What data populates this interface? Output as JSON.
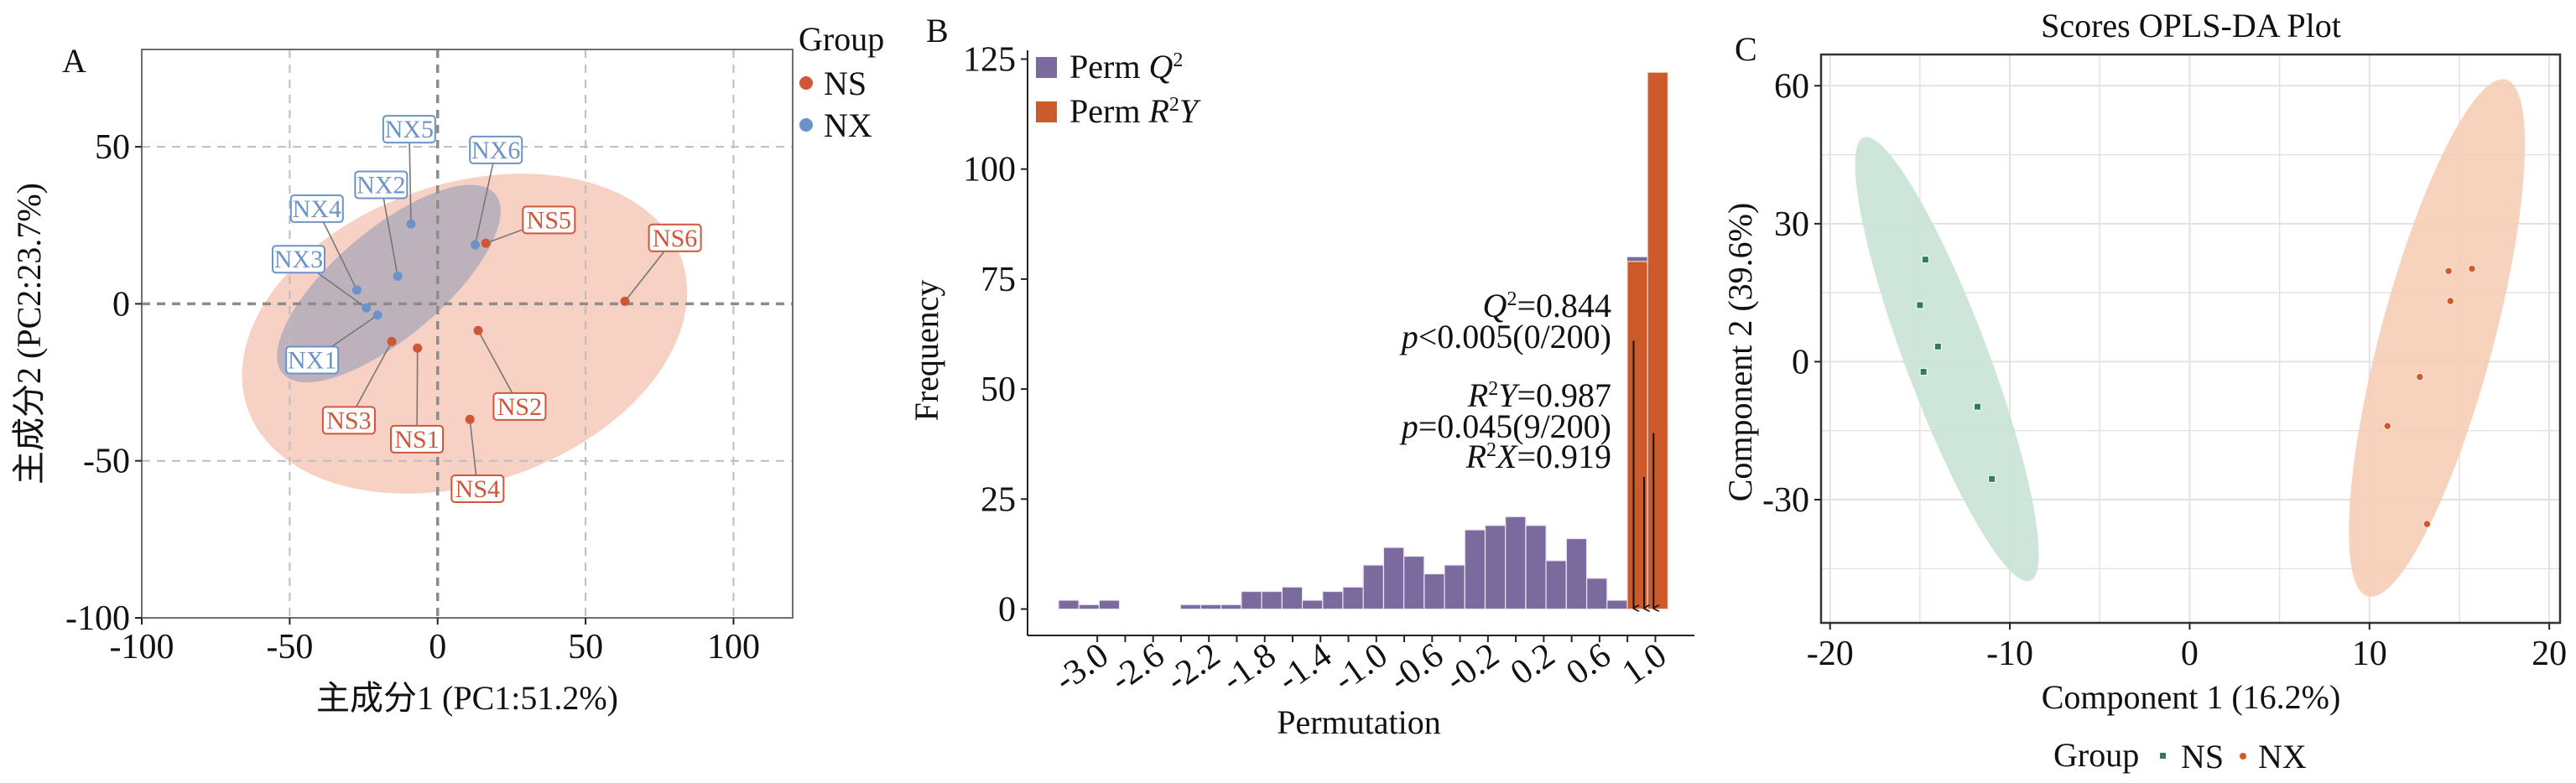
{
  "figure": {
    "panels": [
      "A",
      "B",
      "C"
    ]
  },
  "chart_data": [
    {
      "id": "A",
      "type": "scatter",
      "panel_letter": "A",
      "title": "",
      "xlabel": "主成分1 (PC1:51.2%)",
      "ylabel": "主成分2 (PC2:23.7%)",
      "xlim": [
        -100,
        120
      ],
      "ylim": [
        -100,
        81
      ],
      "xticks": [
        -100,
        -50,
        0,
        50,
        100
      ],
      "yticks": [
        -100,
        -50,
        0,
        50
      ],
      "xtick_labels": [
        "-100",
        "-50",
        "0",
        "50",
        "100"
      ],
      "ytick_labels": [
        "-100",
        "-50",
        "0",
        "50"
      ],
      "grid": "dashed",
      "zero_lines": true,
      "legend": {
        "title": "Group",
        "placement": "right-top",
        "entries": [
          {
            "label": "NS",
            "color": "#d0563a"
          },
          {
            "label": "NX",
            "color": "#6b93c8"
          }
        ]
      },
      "series": [
        {
          "name": "NS",
          "color": "#d0563a",
          "ellipse_fill": "#f4b8a6",
          "ellipse": {
            "center": [
              9.1,
              -9.5
            ],
            "major_axis_vector": [
              73.4,
              23.7
            ],
            "minor_axis_vector": [
              16.5,
              -45.1
            ]
          },
          "points": [
            {
              "label": "NS1",
              "x": -6.8,
              "y": -14.1,
              "label_x": -7.0,
              "label_y": -43.1
            },
            {
              "label": "NS2",
              "x": 13.7,
              "y": -8.5,
              "label_x": 27.7,
              "label_y": -32.7
            },
            {
              "label": "NS3",
              "x": -15.5,
              "y": -12.0,
              "label_x": -30.0,
              "label_y": -37.1
            },
            {
              "label": "NS4",
              "x": 10.9,
              "y": -36.8,
              "label_x": 13.5,
              "label_y": -58.9
            },
            {
              "label": "NS5",
              "x": 16.3,
              "y": 19.3,
              "label_x": 37.6,
              "label_y": 26.7
            },
            {
              "label": "NS6",
              "x": 63.3,
              "y": 0.8,
              "label_x": 80.2,
              "label_y": 21.0
            }
          ]
        },
        {
          "name": "NX",
          "color": "#6b93c8",
          "ellipse_fill": "#a9a7b8",
          "ellipse": {
            "center": [
              -16.5,
              6.45
            ],
            "major_axis_vector": [
              35.9,
              28.6
            ],
            "minor_axis_vector": [
              11.8,
              -13.1
            ]
          },
          "points": [
            {
              "label": "NX1",
              "x": -20.3,
              "y": -3.6,
              "label_x": -42.4,
              "label_y": -17.9
            },
            {
              "label": "NX2",
              "x": -13.5,
              "y": 8.8,
              "label_x": -19.1,
              "label_y": 37.9
            },
            {
              "label": "NX3",
              "x": -24.1,
              "y": -1.3,
              "label_x": -47.0,
              "label_y": 14.2
            },
            {
              "label": "NX4",
              "x": -27.3,
              "y": 4.4,
              "label_x": -40.8,
              "label_y": 30.3
            },
            {
              "label": "NX5",
              "x": -9.0,
              "y": 25.4,
              "label_x": -9.6,
              "label_y": 55.6
            },
            {
              "label": "NX6",
              "x": 12.7,
              "y": 18.8,
              "label_x": 19.7,
              "label_y": 49.0
            }
          ]
        }
      ]
    },
    {
      "id": "B",
      "type": "bar",
      "subtype": "histogram",
      "panel_letter": "B",
      "title": "",
      "xlabel": "Permutation",
      "ylabel": "Frequency",
      "xlim": [
        -3.5,
        1.28
      ],
      "ylim": [
        -6,
        127
      ],
      "yticks": [
        0,
        25,
        50,
        75,
        100,
        125
      ],
      "ytick_labels": [
        "0",
        "25",
        "50",
        "75",
        "100",
        "125"
      ],
      "xticks": [
        -3.0,
        -2.6,
        -2.2,
        -1.8,
        -1.4,
        -1.0,
        -0.6,
        -0.2,
        0.2,
        0.6,
        1.0
      ],
      "xtick_labels": [
        "-3.0",
        "-2.6",
        "-2.2",
        "-1.8",
        "-1.4",
        "-1.0",
        "-0.6",
        "-0.2",
        "0.2",
        "0.6",
        "1.0"
      ],
      "xminor_ticks": [
        -2.8,
        -2.4,
        -2.0,
        -1.6,
        -1.2,
        -0.8,
        -0.4,
        0.0,
        0.4,
        0.8
      ],
      "grid": false,
      "bin_width": 0.1456,
      "legend": {
        "placement": "top-left",
        "entries": [
          {
            "label_main": "Perm ",
            "label_sym": "Q",
            "label_sup": "2",
            "label_tail": "",
            "color": "#7a6a9e"
          },
          {
            "label_main": "Perm ",
            "label_sym": "R",
            "label_sup": "2",
            "label_tail": "Y",
            "color": "#cc5a2b"
          }
        ]
      },
      "series": [
        {
          "name": "Perm Q2",
          "color": "#7a6a9e",
          "bin_centers": [
            -3.205,
            -3.059,
            -2.914,
            -2.768,
            -2.623,
            -2.477,
            -2.331,
            -2.186,
            -2.04,
            -1.895,
            -1.749,
            -1.603,
            -1.458,
            -1.312,
            -1.167,
            -1.021,
            -0.875,
            -0.73,
            -0.584,
            -0.439,
            -0.293,
            -0.147,
            -0.002,
            0.144,
            0.289,
            0.435,
            0.581,
            0.726
          ],
          "values": [
            2,
            1,
            2,
            0,
            0,
            0,
            1,
            1,
            1,
            4,
            4,
            5,
            2,
            4,
            5,
            10,
            14,
            12,
            8,
            10,
            18,
            19,
            21,
            19,
            11,
            16,
            7,
            2
          ]
        },
        {
          "name": "Perm R2Y",
          "color": "#cc5a2b",
          "bin_centers": [
            0.872,
            1.017
          ],
          "values": [
            79,
            122
          ],
          "q2_overlap_cap": [
            1,
            0
          ]
        }
      ],
      "annotations": {
        "lines": [
          {
            "sym": "Q",
            "sup": "2",
            "tail": "",
            "text": "=0.844"
          },
          {
            "sym": "p",
            "sup": "",
            "tail": "",
            "text": "<0.005(0/200)"
          },
          {
            "sym": "R",
            "sup": "2",
            "tail": "Y",
            "text": "=0.987"
          },
          {
            "sym": "p",
            "sup": "",
            "tail": "",
            "text": "=0.045(9/200)"
          },
          {
            "sym": "R",
            "sup": "2",
            "tail": "X",
            "text": "=0.919"
          }
        ],
        "arrows": [
          {
            "name": "Q2",
            "x": 0.844,
            "from_y": 61
          },
          {
            "name": "R2X",
            "x": 0.919,
            "from_y": 30
          },
          {
            "name": "R2Y",
            "x": 0.987,
            "from_y": 40
          }
        ]
      }
    },
    {
      "id": "C",
      "type": "scatter",
      "panel_letter": "C",
      "title": "Scores OPLS-DA Plot",
      "xlabel": "Component 1 (16.2%)",
      "ylabel": "Component 2 (39.6%)",
      "xlim": [
        -20.5,
        20.6
      ],
      "ylim": [
        -56.8,
        66.8
      ],
      "xticks": [
        -20,
        -10,
        0,
        10,
        20
      ],
      "yticks": [
        -30,
        0,
        30,
        60
      ],
      "xtick_labels": [
        "-20",
        "-10",
        "0",
        "10",
        "20"
      ],
      "ytick_labels": [
        "-30",
        "0",
        "30",
        "60"
      ],
      "xgrid": [
        -20,
        -15,
        -10,
        -5,
        0,
        5,
        10,
        15,
        20
      ],
      "ygrid": [
        -45,
        -30,
        -15,
        0,
        15,
        30,
        45,
        60
      ],
      "grid": true,
      "legend": {
        "title": "Group",
        "placement": "bottom",
        "entries": [
          {
            "label": "NS",
            "color": "#2e7d5b",
            "marker": "square"
          },
          {
            "label": "NX",
            "color": "#d25a2a",
            "marker": "circle"
          }
        ]
      },
      "series": [
        {
          "name": "NS",
          "color": "#2e7d5b",
          "marker": "square",
          "ellipse_fill": "#c9e3d6",
          "ellipse": {
            "center": [
              -13.5,
              0.55
            ],
            "major_axis_vector": [
              4.63,
              -48.2
            ],
            "minor_axis_vector": [
              -2.16,
              -3.18
            ]
          },
          "points": [
            {
              "x": -14.7,
              "y": 22.2
            },
            {
              "x": -15.0,
              "y": 12.3
            },
            {
              "x": -14.0,
              "y": 3.3
            },
            {
              "x": -14.8,
              "y": -2.2
            },
            {
              "x": -11.8,
              "y": -9.8
            },
            {
              "x": -11.0,
              "y": -25.5
            }
          ]
        },
        {
          "name": "NX",
          "color": "#d25a2a",
          "marker": "circle",
          "ellipse_fill": "#f6cdb5",
          "ellipse": {
            "center": [
              13.75,
              5.15
            ],
            "major_axis_vector": [
              3.84,
              56.2
            ],
            "minor_axis_vector": [
              3.04,
              -3.18
            ]
          },
          "points": [
            {
              "x": 14.4,
              "y": 19.7
            },
            {
              "x": 15.7,
              "y": 20.2
            },
            {
              "x": 14.5,
              "y": 13.2
            },
            {
              "x": 12.8,
              "y": -3.3
            },
            {
              "x": 11.0,
              "y": -14.0
            },
            {
              "x": 13.2,
              "y": -35.3
            }
          ]
        }
      ]
    }
  ]
}
